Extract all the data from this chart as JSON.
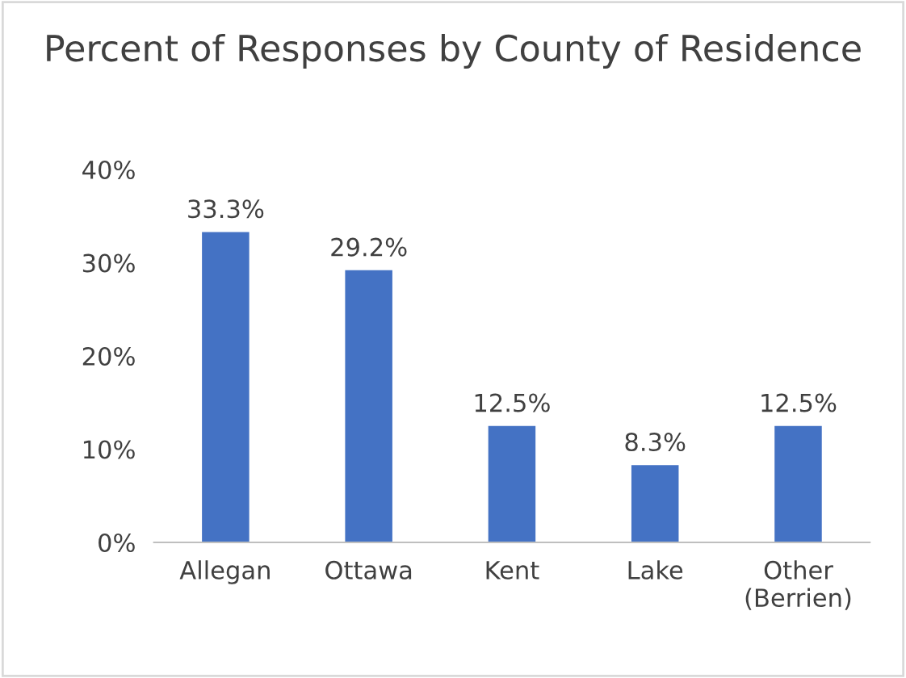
{
  "chart_data": {
    "type": "bar",
    "title": "Percent of Responses by County of Residence",
    "categories": [
      "Allegan",
      "Ottawa",
      "Kent",
      "Lake",
      "Other (Berrien)"
    ],
    "values": [
      33.3,
      29.2,
      12.5,
      8.3,
      12.5
    ],
    "value_labels": [
      "33.3%",
      "29.2%",
      "12.5%",
      "8.3%",
      "12.5%"
    ],
    "color": "#4472c4",
    "ylim": [
      0,
      40
    ],
    "yticks": [
      {
        "value": 0,
        "label": "0%"
      },
      {
        "value": 10,
        "label": "10%"
      },
      {
        "value": 20,
        "label": "20%"
      },
      {
        "value": 30,
        "label": "30%"
      },
      {
        "value": 40,
        "label": "40%"
      }
    ],
    "grid": false
  }
}
